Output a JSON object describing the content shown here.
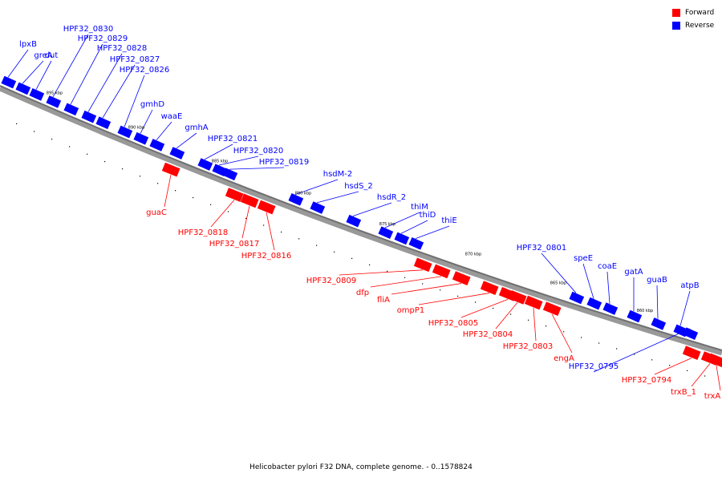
{
  "legend": [
    {
      "label": "Forward",
      "color": "#ff0000"
    },
    {
      "label": "Reverse",
      "color": "#0000ff"
    }
  ],
  "caption": "Helicobacter pylori F32 DNA, complete genome. - 0..1578824",
  "colors": {
    "forward": "#ff0000",
    "reverse": "#0000ff",
    "backbone": "#6f6f6f",
    "tick": "#000000"
  },
  "scale_labels": [
    "895 kbp",
    "890 kbp",
    "885 kbp",
    "880 kbp",
    "875 kbp",
    "870 kbp",
    "865 kbp",
    "860 kbp"
  ],
  "genes_reverse": [
    "lpxB",
    "greA",
    "dut",
    "HPF32_0830",
    "HPF32_0829",
    "HPF32_0828",
    "HPF32_0827",
    "HPF32_0826",
    "gmhD",
    "waaE",
    "gmhA",
    "HPF32_0821",
    "HPF32_0820",
    "HPF32_0819",
    "hsdM-2",
    "hsdS_2",
    "hsdR_2",
    "thiM",
    "thiD",
    "thiE",
    "HPF32_0801",
    "speE",
    "coaE",
    "gatA",
    "guaB",
    "atpB",
    "HPF32_0795"
  ],
  "genes_forward": [
    "guaC",
    "HPF32_0818",
    "HPF32_0817",
    "HPF32_0816",
    "HPF32_0809",
    "dfp",
    "fliA",
    "ompP1",
    "HPF32_0805",
    "HPF32_0804",
    "HPF32_0803",
    "engA",
    "HPF32_0794",
    "trxB_1",
    "trxA"
  ]
}
